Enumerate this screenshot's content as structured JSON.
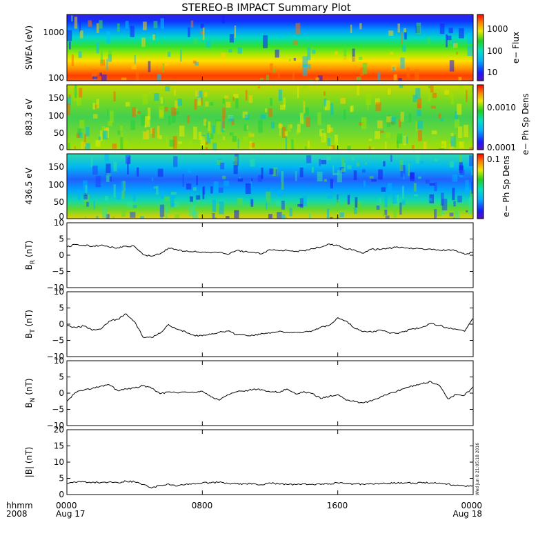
{
  "chart_data": {
    "type": "timeseries-stack",
    "title": "STEREO-B IMPACT Summary Plot",
    "x_axis": {
      "label_top": "hhmm",
      "label_bottom": "2008",
      "ticks": [
        {
          "time": "0000",
          "date": "Aug 17",
          "hour": 0
        },
        {
          "time": "0800",
          "date": "",
          "hour": 8
        },
        {
          "time": "1600",
          "date": "",
          "hour": 16
        },
        {
          "time": "0000",
          "date": "Aug 18",
          "hour": 24
        }
      ],
      "range_hours": [
        0,
        24
      ]
    },
    "panels": [
      {
        "id": "swea",
        "type": "heatmap",
        "ylabel": "SWEA (eV)",
        "yscale": "log",
        "ylim": [
          100,
          2000
        ],
        "yticks": [
          "1000",
          "100"
        ],
        "colorbar": {
          "label": "e− Flux",
          "scale": "log",
          "ticks": [
            "1000",
            "100",
            "10"
          ]
        }
      },
      {
        "id": "pad883",
        "type": "heatmap",
        "ylabel": "883.3 eV",
        "ylim": [
          0,
          180
        ],
        "yticks": [
          "150",
          "100",
          "50",
          "0"
        ],
        "colorbar": {
          "label": "e− Ph Sp Dens",
          "scale": "log",
          "ticks": [
            "0.0010",
            "0.0001"
          ]
        }
      },
      {
        "id": "pad436",
        "type": "heatmap",
        "ylabel": "436.5 eV",
        "ylim": [
          0,
          180
        ],
        "yticks": [
          "150",
          "100",
          "50",
          "0"
        ],
        "colorbar": {
          "label": "e− Ph Sp Dens",
          "scale": "log",
          "ticks": [
            "0.1"
          ]
        }
      },
      {
        "id": "br",
        "type": "line",
        "ylabel": "B",
        "ylabel_sub": "R",
        "ylabel_unit": " (nT)",
        "ylim": [
          -10,
          10
        ],
        "yticks": [
          "10",
          "5",
          "0",
          "−5",
          "−10"
        ],
        "series": [
          {
            "hour": [
              0,
              0.5,
              1,
              1.5,
              2,
              2.5,
              3,
              3.5,
              4,
              4.5,
              5,
              5.5,
              6,
              6.5,
              7,
              7.5,
              8,
              8.5,
              9,
              9.5,
              10,
              10.5,
              11,
              11.5,
              12,
              12.5,
              13,
              13.5,
              14,
              14.5,
              15,
              15.5,
              16,
              16.5,
              17,
              17.5,
              18,
              18.5,
              19,
              19.5,
              20,
              20.5,
              21,
              21.5,
              22,
              22.5,
              23,
              23.5,
              24
            ],
            "value": [
              2.5,
              3.3,
              3.1,
              2.7,
              3.1,
              2.5,
              2.3,
              2.8,
              2.7,
              0.2,
              -0.3,
              0.4,
              2.2,
              1.7,
              1.2,
              1.1,
              1.0,
              0.7,
              0.9,
              0.2,
              1.4,
              1.1,
              0.9,
              0.4,
              1.7,
              1.4,
              1.5,
              1.2,
              1.4,
              2.0,
              2.5,
              3.5,
              3.0,
              1.9,
              1.6,
              0.6,
              1.9,
              1.7,
              2.1,
              2.6,
              2.2,
              2.0,
              2.0,
              1.9,
              1.5,
              1.7,
              1.4,
              0.3,
              1.0
            ]
          }
        ]
      },
      {
        "id": "bt",
        "type": "line",
        "ylabel": "B",
        "ylabel_sub": "T",
        "ylabel_unit": " (nT)",
        "ylim": [
          -10,
          10
        ],
        "yticks": [
          "10",
          "5",
          "0",
          "−5",
          "−10"
        ],
        "series": [
          {
            "hour": [
              0,
              0.5,
              1,
              1.5,
              2,
              2.5,
              3,
              3.5,
              4,
              4.5,
              5,
              5.5,
              6,
              6.5,
              7,
              7.5,
              8,
              8.5,
              9,
              9.5,
              10,
              10.5,
              11,
              11.5,
              12,
              12.5,
              13,
              13.5,
              14,
              14.5,
              15,
              15.5,
              16,
              16.5,
              17,
              17.5,
              18,
              18.5,
              19,
              19.5,
              20,
              20.5,
              21,
              21.5,
              22,
              22.5,
              23,
              23.5,
              24
            ],
            "value": [
              -0.5,
              -1.0,
              -0.6,
              -1.9,
              -1.5,
              1.0,
              1.5,
              3.2,
              0.8,
              -4.0,
              -4.1,
              -2.8,
              -0.1,
              -1.5,
              -2.3,
              -3.4,
              -3.6,
              -3.1,
              -2.5,
              -2.1,
              -3.2,
              -3.3,
              -3.5,
              -2.8,
              -2.8,
              -2.3,
              -2.5,
              -2.5,
              -2.4,
              -2.0,
              -0.9,
              -0.3,
              2.0,
              1.0,
              -1.3,
              -2.3,
              -2.4,
              -1.8,
              -2.6,
              -2.8,
              -2.1,
              -1.4,
              -0.9,
              0.3,
              -0.4,
              -1.2,
              -1.6,
              -2.2,
              1.8
            ]
          }
        ]
      },
      {
        "id": "bn",
        "type": "line",
        "ylabel": "B",
        "ylabel_sub": "N",
        "ylabel_unit": " (nT)",
        "ylim": [
          -10,
          10
        ],
        "yticks": [
          "10",
          "5",
          "0",
          "−5",
          "−10"
        ],
        "series": [
          {
            "hour": [
              0,
              0.5,
              1,
              1.5,
              2,
              2.5,
              3,
              3.5,
              4,
              4.5,
              5,
              5.5,
              6,
              6.5,
              7,
              7.5,
              8,
              8.5,
              9,
              9.5,
              10,
              10.5,
              11,
              11.5,
              12,
              12.5,
              13,
              13.5,
              14,
              14.5,
              15,
              15.5,
              16,
              16.5,
              17,
              17.5,
              18,
              18.5,
              19,
              19.5,
              20,
              20.5,
              21,
              21.5,
              22,
              22.5,
              23,
              23.5,
              24
            ],
            "value": [
              -2.5,
              0.2,
              0.9,
              1.5,
              2.2,
              2.6,
              0.8,
              1.3,
              1.6,
              2.4,
              1.5,
              -0.2,
              0.4,
              0.1,
              0.4,
              0.3,
              0.6,
              -1.1,
              -2.2,
              -0.5,
              0.4,
              0.6,
              1.2,
              1.1,
              0.4,
              0.3,
              1.3,
              -0.2,
              0.5,
              -0.1,
              -1.7,
              -1.0,
              -0.4,
              -2.2,
              -2.6,
              -3.0,
              -2.4,
              -1.3,
              -0.2,
              0.6,
              1.6,
              2.4,
              2.9,
              3.6,
              2.4,
              -1.7,
              -0.4,
              -0.6,
              2.0
            ]
          }
        ]
      },
      {
        "id": "bmag",
        "type": "line",
        "ylabel": "|B| (nT)",
        "ylim": [
          0,
          20
        ],
        "yticks": [
          "20",
          "15",
          "10",
          "5",
          "0"
        ],
        "series": [
          {
            "hour": [
              0,
              0.5,
              1,
              1.5,
              2,
              2.5,
              3,
              3.5,
              4,
              4.5,
              5,
              5.5,
              6,
              6.5,
              7,
              7.5,
              8,
              8.5,
              9,
              9.5,
              10,
              10.5,
              11,
              11.5,
              12,
              12.5,
              13,
              13.5,
              14,
              14.5,
              15,
              15.5,
              16,
              16.5,
              17,
              17.5,
              18,
              18.5,
              19,
              19.5,
              20,
              20.5,
              21,
              21.5,
              22,
              22.5,
              23,
              23.5,
              24
            ],
            "value": [
              3.3,
              3.8,
              3.9,
              3.8,
              3.7,
              3.9,
              3.7,
              4.1,
              3.9,
              3.1,
              2.0,
              2.8,
              3.3,
              2.6,
              3.1,
              3.4,
              3.6,
              3.6,
              3.8,
              3.5,
              3.3,
              3.3,
              3.4,
              3.0,
              3.6,
              3.3,
              3.1,
              3.1,
              3.3,
              3.2,
              3.1,
              3.3,
              3.6,
              3.3,
              3.3,
              3.2,
              3.3,
              3.4,
              3.5,
              3.5,
              3.6,
              3.5,
              3.6,
              3.6,
              3.6,
              3.3,
              2.8,
              2.6,
              2.7
            ]
          }
        ]
      }
    ],
    "stamp": "Wed Jun  8 21:05:18 2016"
  }
}
